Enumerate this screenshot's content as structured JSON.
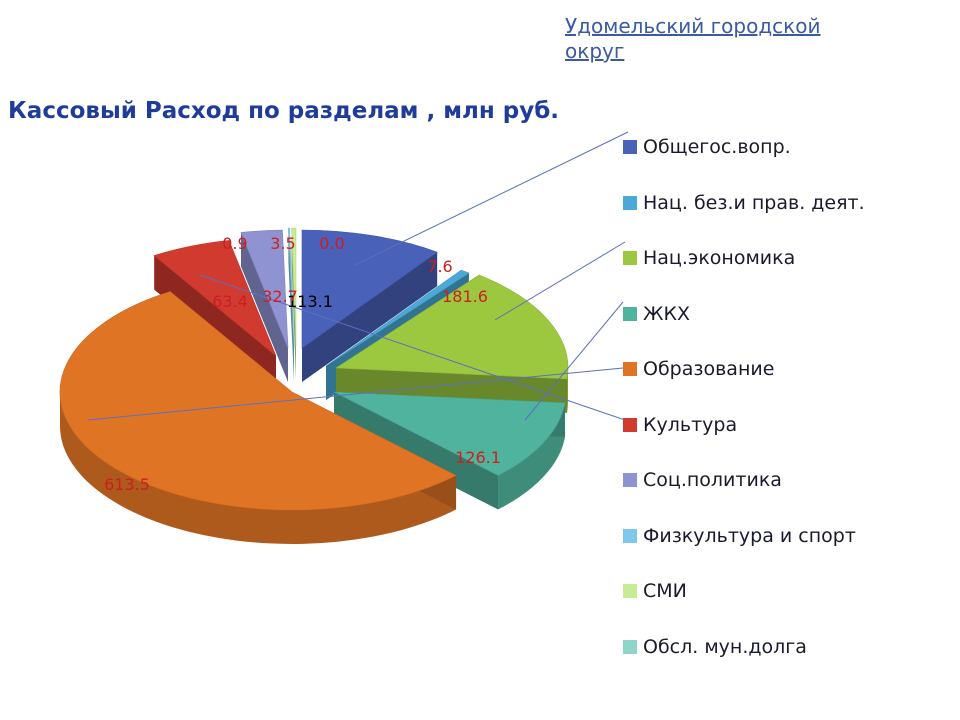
{
  "header": {
    "org_link": "Удомельский городской округ"
  },
  "chart_data": {
    "type": "pie",
    "title": "Кассовый Расход по разделам , млн руб.",
    "unit": "млн руб.",
    "legend_position": "right",
    "data_label_color": "#cc1f1f",
    "slices": [
      {
        "name": "Общегос.вопр.",
        "value": 113.1,
        "label": "113.1",
        "color": "#4a61b9",
        "label_color": "#000000"
      },
      {
        "name": "Нац. без.и прав. деят.",
        "value": 7.6,
        "label": "7.6",
        "color": "#4aa9d6"
      },
      {
        "name": "Нац.экономика",
        "value": 181.6,
        "label": "181.6",
        "color": "#9bc83f"
      },
      {
        "name": "ЖКХ",
        "value": 126.1,
        "label": "126.1",
        "color": "#4fb39d"
      },
      {
        "name": "Образование",
        "value": 613.5,
        "label": "613.5",
        "color": "#e07425"
      },
      {
        "name": "Культура",
        "value": 63.4,
        "label": "63.4",
        "color": "#d13a2e"
      },
      {
        "name": "Соц.политика",
        "value": 32.7,
        "label": "32.7",
        "color": "#8f93d2"
      },
      {
        "name": "Физкультура и спорт",
        "value": 0.9,
        "label": "0.9",
        "color": "#7ec8ec"
      },
      {
        "name": "СМИ",
        "value": 3.5,
        "label": "3.5",
        "color": "#c6ec95"
      },
      {
        "name": "Обсл. мун.долга",
        "value": 0.0,
        "label": "0.0",
        "color": "#8fd6c8"
      }
    ]
  }
}
